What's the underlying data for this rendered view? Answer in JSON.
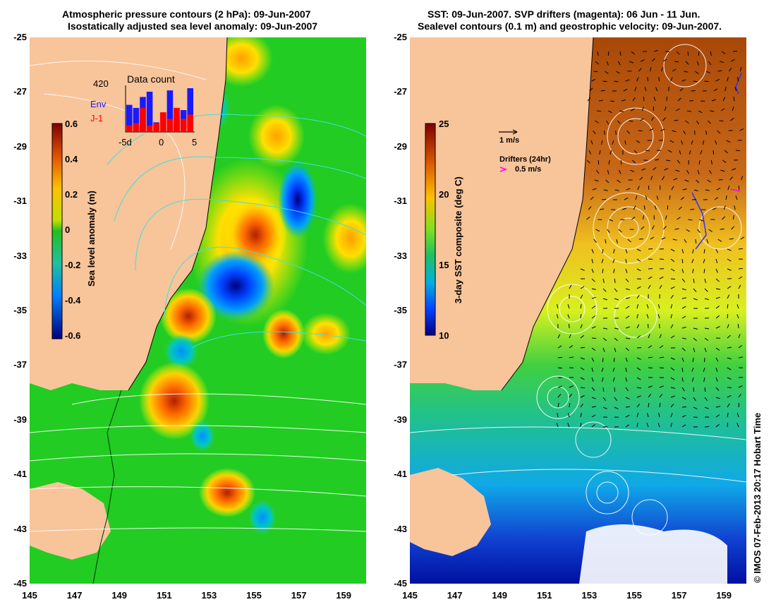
{
  "left_panel": {
    "title_line1": "Atmospheric pressure contours (2 hPa): 09-Jun-2007",
    "title_line2": "Isostatically adjusted sea level anomaly: 09-Jun-2007",
    "colorbar_label": "Sea level anomaly (m)",
    "colorbar_ticks": [
      "0.6",
      "0.4",
      "0.2",
      "0",
      "-0.2",
      "-0.4",
      "-0.6"
    ],
    "inset": {
      "title": "Data count",
      "count_label": "420",
      "legend_env": "Env",
      "legend_j1": "J-1",
      "x_ticks": [
        "-5d",
        "0",
        "5"
      ],
      "env_color": "#1a1aff",
      "j1_color": "#ff0000",
      "env_values": [
        0.62,
        0.55,
        0.8,
        0.92,
        0.22,
        0.4,
        0.95,
        0.38,
        0.5,
        1.0
      ],
      "j1_values": [
        0.15,
        0.2,
        0.55,
        0.15,
        0.2,
        0.45,
        0.3,
        0.55,
        0.3,
        0.4
      ]
    }
  },
  "right_panel": {
    "title_line1": "SST: 09-Jun-2007. SVP drifters (magenta): 06 Jun - 11 Jun.",
    "title_line2": "Sealevel contours (0.1 m) and geostrophic velocity: 09-Jun-2007.",
    "colorbar_label": "3-day SST composite (deg C)",
    "colorbar_ticks": [
      "25",
      "20",
      "15",
      "10"
    ],
    "velocity_scale_label": "1 m/s",
    "drifters_label": "Drifters (24hr)",
    "drifters_scale": "0.5 m/s",
    "drifter_color": "#ff00ff"
  },
  "y_ticks": [
    "-25",
    "-27",
    "-29",
    "-31",
    "-33",
    "-35",
    "-37",
    "-39",
    "-41",
    "-43",
    "-45"
  ],
  "x_ticks": [
    "145",
    "147",
    "149",
    "151",
    "153",
    "155",
    "157",
    "159"
  ],
  "credit": "© IMOS 07-Feb-2013 20:17 Hobart Time",
  "colors": {
    "land": "#f8c49a",
    "sla_background": "#22cc22",
    "contour_cyan": "#40e0e0"
  }
}
